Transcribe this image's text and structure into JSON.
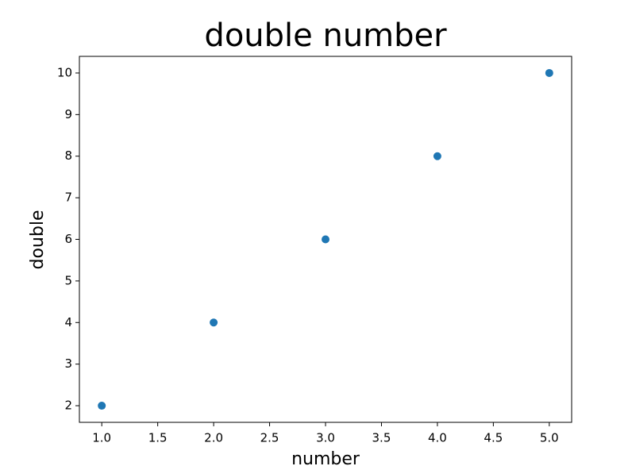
{
  "chart_data": {
    "type": "scatter",
    "title": "double number",
    "x_label": "number",
    "y_label": "double",
    "x": [
      1,
      2,
      3,
      4,
      5
    ],
    "values": [
      2,
      4,
      6,
      8,
      10
    ],
    "color": "#1f77b4",
    "xlim": [
      0.8,
      5.2
    ],
    "ylim": [
      1.6,
      10.4
    ],
    "xticks": [
      {
        "value": 1,
        "label": "1.0"
      },
      {
        "value": 1.5,
        "label": "1.5"
      },
      {
        "value": 2,
        "label": "2.0"
      },
      {
        "value": 2.5,
        "label": "2.5"
      },
      {
        "value": 3,
        "label": "3.0"
      },
      {
        "value": 3.5,
        "label": "3.5"
      },
      {
        "value": 4,
        "label": "4.0"
      },
      {
        "value": 4.5,
        "label": "4.5"
      },
      {
        "value": 5,
        "label": "5.0"
      }
    ],
    "yticks": [
      2,
      3,
      4,
      5,
      6,
      7,
      8,
      9,
      10
    ],
    "grid": false
  }
}
